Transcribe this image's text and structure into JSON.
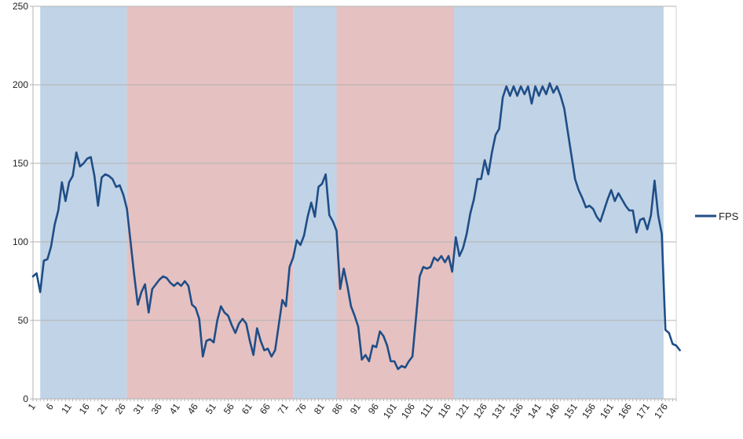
{
  "chart_data": {
    "type": "line",
    "title": "",
    "xlabel": "",
    "ylabel": "",
    "ylim": [
      0,
      250
    ],
    "yticks": [
      0,
      50,
      100,
      150,
      200,
      250
    ],
    "xlim": [
      1,
      179
    ],
    "xticks": [
      1,
      6,
      11,
      16,
      21,
      26,
      31,
      36,
      41,
      46,
      51,
      56,
      61,
      66,
      71,
      76,
      81,
      86,
      91,
      96,
      101,
      106,
      111,
      116,
      121,
      126,
      131,
      136,
      141,
      146,
      151,
      156,
      161,
      166,
      171,
      176
    ],
    "grid": "horizontal",
    "legend": "right",
    "bands": [
      {
        "from": 3,
        "to": 27,
        "color": "#c1d3e6"
      },
      {
        "from": 27,
        "to": 73,
        "color": "#e5c1c1"
      },
      {
        "from": 73,
        "to": 85,
        "color": "#c1d3e6"
      },
      {
        "from": 85,
        "to": 117.5,
        "color": "#e5c1c1"
      },
      {
        "from": 117.5,
        "to": 175.5,
        "color": "#c1d3e6"
      }
    ],
    "series": [
      {
        "name": "FPS",
        "color": "#1f4e87",
        "values": [
          78,
          80,
          68,
          88,
          89,
          97,
          111,
          120,
          138,
          126,
          138,
          142,
          157,
          148,
          150,
          153,
          154,
          142,
          123,
          141,
          143,
          142,
          140,
          135,
          136,
          130,
          121,
          100,
          79,
          60,
          68,
          73,
          55,
          70,
          73,
          76,
          78,
          77,
          74,
          72,
          74,
          72,
          75,
          72,
          60,
          58,
          51,
          27,
          37,
          38,
          36,
          50,
          59,
          55,
          53,
          47,
          42,
          48,
          51,
          48,
          37,
          28,
          45,
          37,
          31,
          32,
          27,
          31,
          47,
          63,
          59,
          84,
          90,
          101,
          98,
          104,
          116,
          125,
          116,
          135,
          137,
          143,
          117,
          113,
          107,
          70,
          83,
          72,
          59,
          53,
          46,
          25,
          28,
          24,
          34,
          33,
          43,
          40,
          34,
          24,
          24,
          19,
          21,
          20,
          24,
          27,
          52,
          78,
          84,
          83,
          84,
          90,
          88,
          91,
          87,
          91,
          81,
          103,
          91,
          96,
          105,
          118,
          127,
          140,
          140,
          152,
          143,
          157,
          168,
          172,
          192,
          199,
          193,
          199,
          193,
          199,
          194,
          199,
          188,
          199,
          193,
          199,
          194,
          201,
          195,
          199,
          193,
          185,
          170,
          155,
          140,
          133,
          128,
          122,
          123,
          121,
          116,
          113,
          120,
          127,
          133,
          126,
          131,
          127,
          123,
          120,
          120,
          106,
          114,
          115,
          108,
          117,
          139,
          117,
          105,
          44,
          42,
          35,
          34,
          31
        ]
      }
    ]
  }
}
